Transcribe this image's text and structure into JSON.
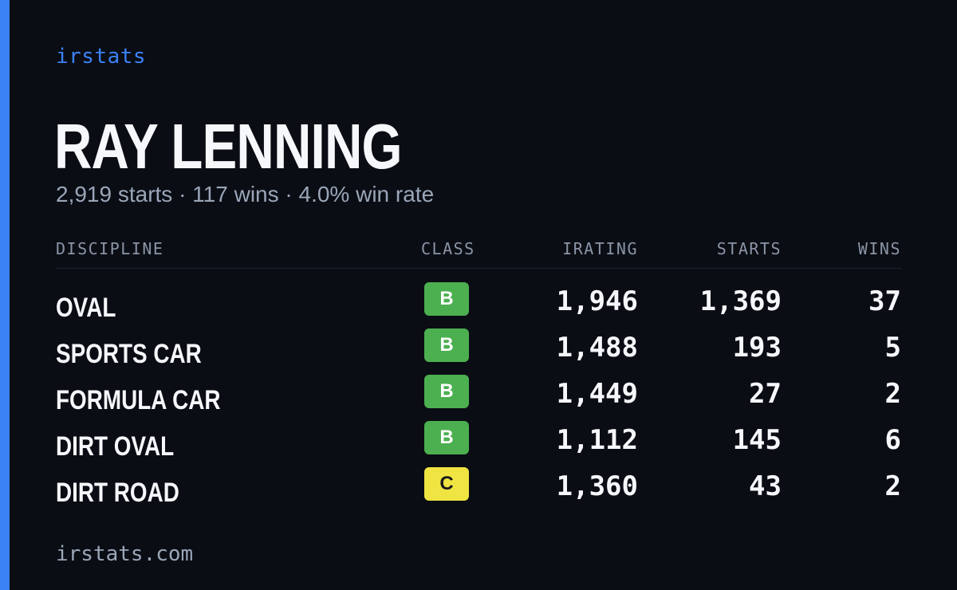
{
  "brand": "irstats",
  "driver": {
    "name": "RAY LENNING",
    "summary": "2,919 starts · 117 wins · 4.0% win rate"
  },
  "table": {
    "headers": {
      "discipline": "DISCIPLINE",
      "class": "CLASS",
      "irating": "IRATING",
      "starts": "STARTS",
      "wins": "WINS"
    },
    "rows": [
      {
        "discipline": "OVAL",
        "class": "B",
        "irating": "1,946",
        "starts": "1,369",
        "wins": "37"
      },
      {
        "discipline": "SPORTS CAR",
        "class": "B",
        "irating": "1,488",
        "starts": "193",
        "wins": "5"
      },
      {
        "discipline": "FORMULA CAR",
        "class": "B",
        "irating": "1,449",
        "starts": "27",
        "wins": "2"
      },
      {
        "discipline": "DIRT OVAL",
        "class": "B",
        "irating": "1,112",
        "starts": "145",
        "wins": "6"
      },
      {
        "discipline": "DIRT ROAD",
        "class": "C",
        "irating": "1,360",
        "starts": "43",
        "wins": "2"
      }
    ]
  },
  "class_colors": {
    "B": {
      "bg": "#4caf50",
      "fg": "#ffffff"
    },
    "C": {
      "bg": "#f0e442",
      "fg": "#1a1a1a"
    }
  },
  "colors": {
    "accent": "#3b82f6",
    "background": "#0a0d14"
  },
  "footer": "irstats.com"
}
